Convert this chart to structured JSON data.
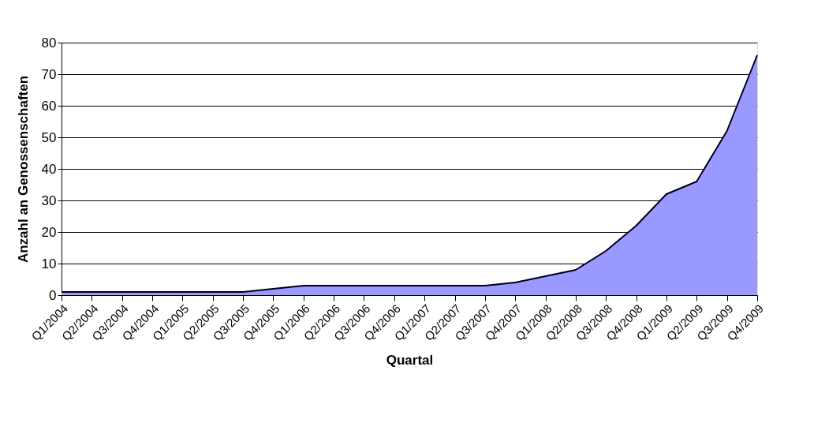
{
  "chart_data": {
    "type": "area",
    "xlabel": "Quartal",
    "ylabel": "Anzahl an Genossenschaften",
    "categories": [
      "Q1/2004",
      "Q2/2004",
      "Q3/2004",
      "Q4/2004",
      "Q1/2005",
      "Q2/2005",
      "Q3/2005",
      "Q4/2005",
      "Q1/2006",
      "Q2/2006",
      "Q3/2006",
      "Q4/2006",
      "Q1/2007",
      "Q2/2007",
      "Q3/2007",
      "Q4/2007",
      "Q1/2008",
      "Q2/2008",
      "Q3/2008",
      "Q4/2008",
      "Q1/2009",
      "Q2/2009",
      "Q3/2009",
      "Q4/2009"
    ],
    "series": [
      {
        "color": "#9999ff",
        "values": [
          1,
          1,
          1,
          1,
          1,
          1,
          1,
          2,
          3,
          3,
          3,
          3,
          3,
          3,
          3,
          4,
          6,
          8,
          14,
          22,
          32,
          36,
          52,
          76
        ]
      }
    ],
    "ylim": [
      0,
      80
    ],
    "yticks": [
      0,
      10,
      20,
      30,
      40,
      50,
      60,
      70,
      80
    ],
    "grid": "y"
  }
}
